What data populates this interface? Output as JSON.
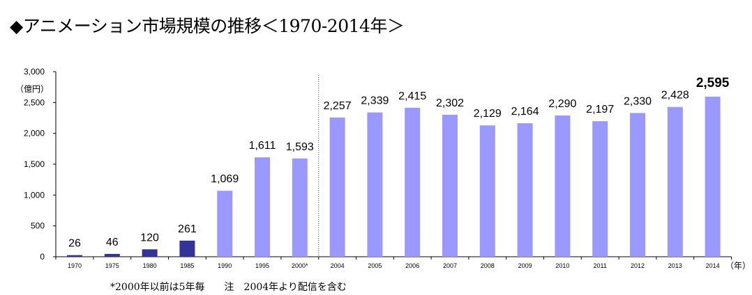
{
  "chart_data": {
    "type": "bar",
    "title": "◆アニメーション市場規模の推移＜1970-2014年＞",
    "unit_label": "（億円）",
    "x_unit_label": "（年）",
    "ylim": [
      0,
      3000
    ],
    "y_ticks": [
      "0",
      "500",
      "1,000",
      "1,500",
      "2,000",
      "2,500",
      "3,000"
    ],
    "categories": [
      "1970",
      "1975",
      "1980",
      "1985",
      "1990",
      "1995",
      "2000*",
      "2004",
      "2005",
      "2006",
      "2007",
      "2008",
      "2009",
      "2010",
      "2011",
      "2012",
      "2013",
      "2014"
    ],
    "values": [
      26,
      46,
      120,
      261,
      1069,
      1611,
      1593,
      2257,
      2339,
      2415,
      2302,
      2129,
      2164,
      2290,
      2197,
      2330,
      2428,
      2595
    ],
    "value_labels": [
      "26",
      "46",
      "120",
      "261",
      "1,069",
      "1,611",
      "1,593",
      "2,257",
      "2,339",
      "2,415",
      "2,302",
      "2,129",
      "2,164",
      "2,290",
      "2,197",
      "2,330",
      "2,428",
      "2,595"
    ],
    "highlight_last": true,
    "series_colors": {
      "early": "#333399",
      "late": "#9999ff"
    },
    "early_count": 4,
    "divider_after_index": 6,
    "footnote": "*2000年以前は5年毎　　注　2004年より配信を含む"
  }
}
